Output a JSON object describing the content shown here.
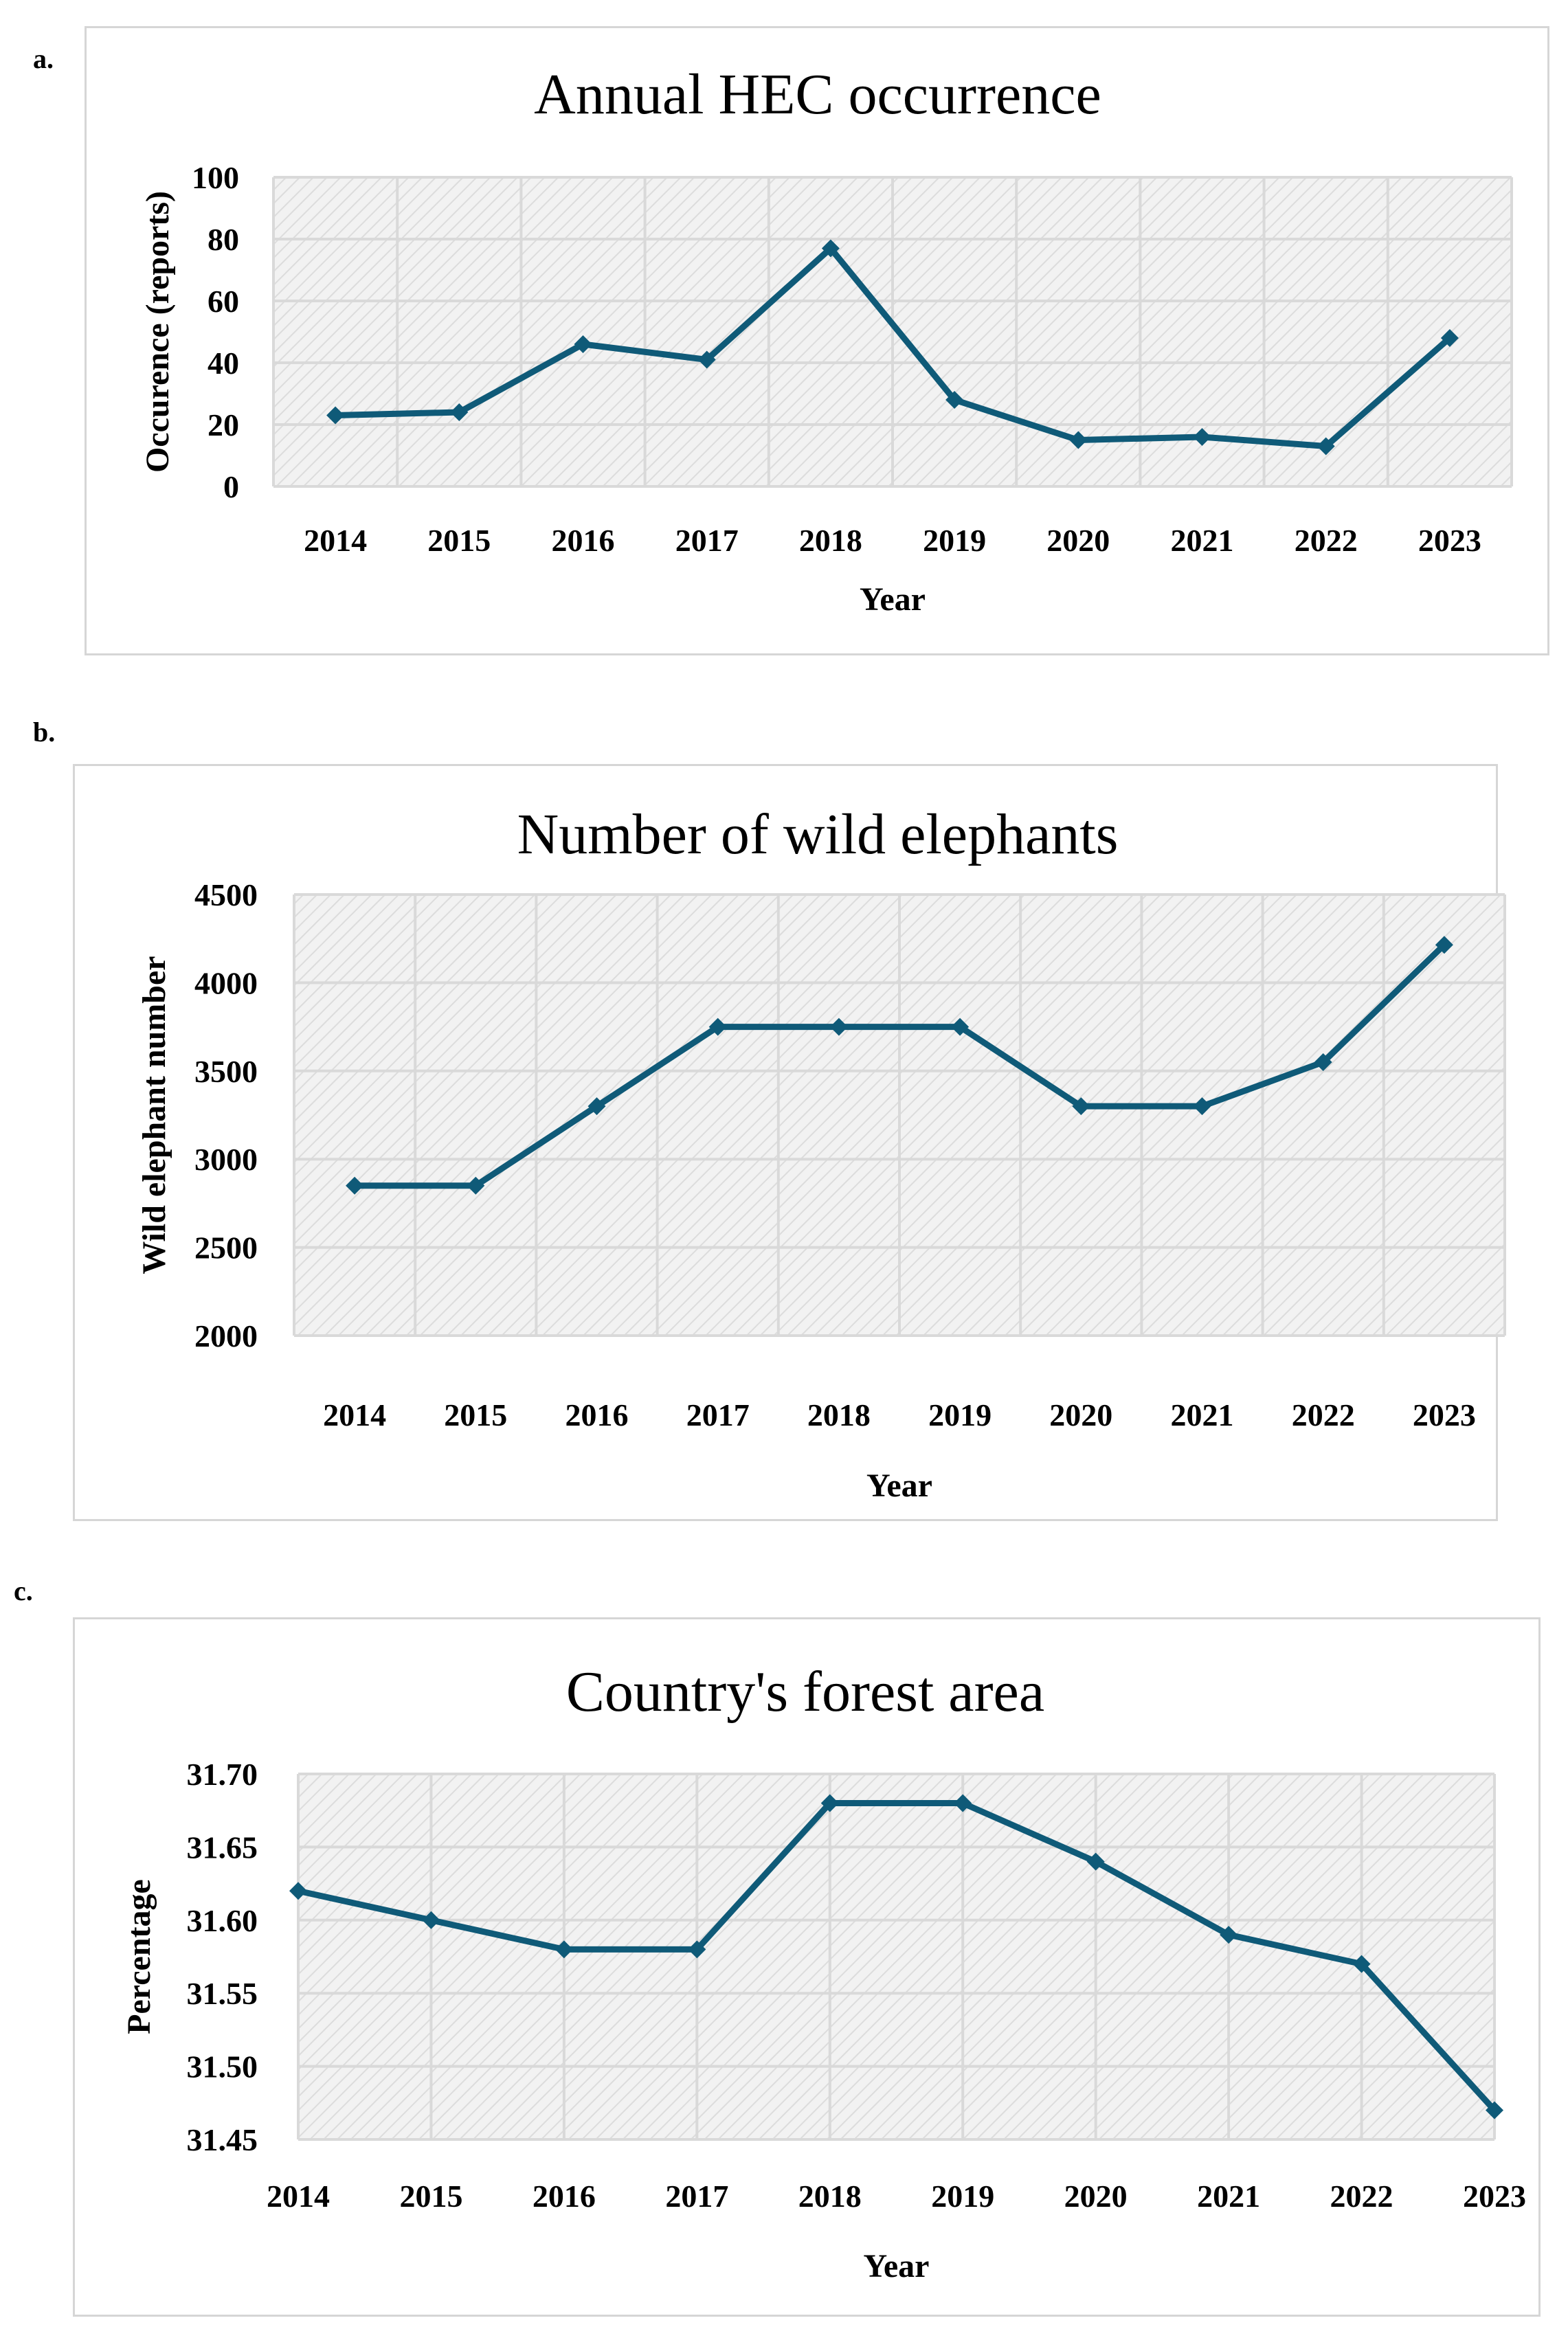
{
  "panels": [
    {
      "letter": "a."
    },
    {
      "letter": "b."
    },
    {
      "letter": "c."
    }
  ],
  "colors": {
    "series": "#0f5a78",
    "grid": "#d9d9d9"
  },
  "chart_data": [
    {
      "type": "line",
      "title": "Annual HEC occurrence",
      "xlabel": "Year",
      "ylabel": "Occurence (reports)",
      "categories": [
        "2014",
        "2015",
        "2016",
        "2017",
        "2018",
        "2019",
        "2020",
        "2021",
        "2022",
        "2023"
      ],
      "values": [
        23,
        24,
        46,
        41,
        77,
        28,
        15,
        16,
        13,
        48
      ],
      "ylim": [
        0,
        100
      ],
      "yticks": [
        "0",
        "20",
        "40",
        "60",
        "80",
        "100"
      ],
      "grid": true,
      "marker": "diamond"
    },
    {
      "type": "line",
      "title": "Number of wild elephants",
      "xlabel": "Year",
      "ylabel": "Wild elephant number",
      "categories": [
        "2014",
        "2015",
        "2016",
        "2017",
        "2018",
        "2019",
        "2020",
        "2021",
        "2022",
        "2023"
      ],
      "values": [
        2850,
        2850,
        3300,
        3750,
        3750,
        3750,
        3300,
        3300,
        3550,
        4215
      ],
      "ylim": [
        2000,
        4500
      ],
      "yticks": [
        "2000",
        "2500",
        "3000",
        "3500",
        "4000",
        "4500"
      ],
      "grid": true,
      "marker": "diamond"
    },
    {
      "type": "line",
      "title": "Country's forest area",
      "xlabel": "Year",
      "ylabel": "Percentage",
      "categories": [
        "2014",
        "2015",
        "2016",
        "2017",
        "2018",
        "2019",
        "2020",
        "2021",
        "2022",
        "2023"
      ],
      "values": [
        31.62,
        31.6,
        31.58,
        31.58,
        31.68,
        31.68,
        31.64,
        31.59,
        31.57,
        31.47
      ],
      "ylim": [
        31.45,
        31.7
      ],
      "yticks": [
        "31.45",
        "31.50",
        "31.55",
        "31.60",
        "31.65",
        "31.70"
      ],
      "grid": true,
      "marker": "diamond"
    }
  ]
}
